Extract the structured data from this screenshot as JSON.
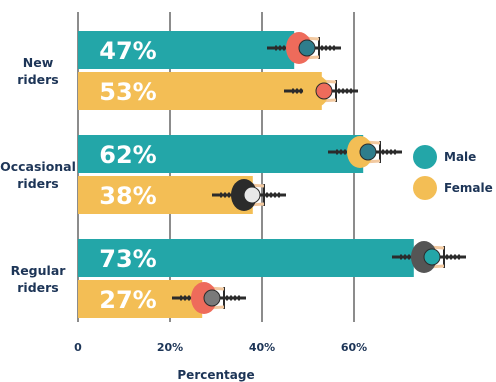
{
  "chart_data": {
    "type": "bar",
    "orientation": "horizontal",
    "categories": [
      "New riders",
      "Occasional riders",
      "Regular riders"
    ],
    "category_lines": [
      [
        "New",
        "riders"
      ],
      [
        "Occasional",
        "riders"
      ],
      [
        "Regular",
        "riders"
      ]
    ],
    "series": [
      {
        "name": "Male",
        "values": [
          47,
          62,
          73
        ],
        "labels": [
          "47%",
          "62%",
          "73%"
        ]
      },
      {
        "name": "Female",
        "values": [
          53,
          38,
          27
        ],
        "labels": [
          "53%",
          "38%",
          "27%"
        ]
      }
    ],
    "xlabel": "Percentage",
    "xlim": [
      0,
      80
    ],
    "xticks": [
      0,
      20,
      40,
      60
    ],
    "xtick_labels": [
      "0",
      "20%",
      "40%",
      "60%"
    ],
    "grid": true,
    "legend_position": "right",
    "colors": {
      "male": "#23a6a8",
      "female": "#f3be55",
      "text": "#1d3557",
      "grid": "#1a1a1a"
    },
    "icons": [
      "cyclist-male-icon",
      "cyclist-female-icon"
    ]
  }
}
